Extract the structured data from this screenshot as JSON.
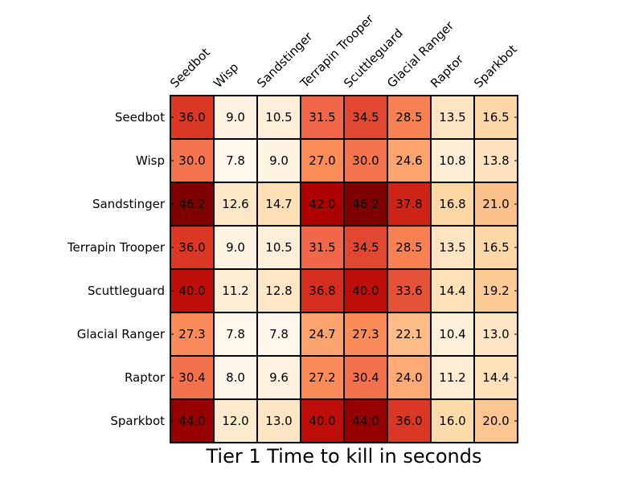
{
  "chart_data": {
    "type": "heatmap",
    "title": "Tier 1 Time to kill in seconds",
    "colormap": "OrRd",
    "colormap_stops": [
      "#fff7ec",
      "#fee8c8",
      "#fdd49e",
      "#fdbb84",
      "#fc8d59",
      "#ef6548",
      "#d7301f",
      "#b30000",
      "#7f0000"
    ],
    "value_range": [
      7.8,
      46.2
    ],
    "x_labels": [
      "Seedbot",
      "Wisp",
      "Sandstinger",
      "Terrapin Trooper",
      "Scuttleguard",
      "Glacial Ranger",
      "Raptor",
      "Sparkbot"
    ],
    "y_labels": [
      "Seedbot",
      "Wisp",
      "Sandstinger",
      "Terrapin Trooper",
      "Scuttleguard",
      "Glacial Ranger",
      "Raptor",
      "Sparkbot"
    ],
    "values": [
      [
        "36.0",
        "9.0",
        "10.5",
        "31.5",
        "34.5",
        "28.5",
        "13.5",
        "16.5"
      ],
      [
        "30.0",
        "7.8",
        "9.0",
        "27.0",
        "30.0",
        "24.6",
        "10.8",
        "13.8"
      ],
      [
        "46.2",
        "12.6",
        "14.7",
        "42.0",
        "46.2",
        "37.8",
        "16.8",
        "21.0"
      ],
      [
        "36.0",
        "9.0",
        "10.5",
        "31.5",
        "34.5",
        "28.5",
        "13.5",
        "16.5"
      ],
      [
        "40.0",
        "11.2",
        "12.8",
        "36.8",
        "40.0",
        "33.6",
        "14.4",
        "19.2"
      ],
      [
        "27.3",
        "7.8",
        "7.8",
        "24.7",
        "27.3",
        "22.1",
        "10.4",
        "13.0"
      ],
      [
        "30.4",
        "8.0",
        "9.6",
        "27.2",
        "30.4",
        "24.0",
        "11.2",
        "14.4"
      ],
      [
        "44.0",
        "12.0",
        "13.0",
        "40.0",
        "44.0",
        "36.0",
        "16.0",
        "20.0"
      ]
    ]
  }
}
